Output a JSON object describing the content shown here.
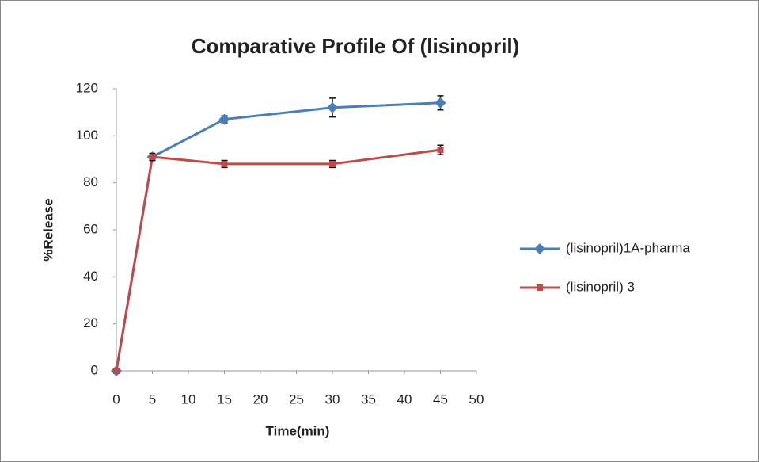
{
  "chart_data": {
    "type": "line",
    "title": "Comparative Profile Of (lisinopril)",
    "x_label": "Time(min)",
    "y_label": "%Release",
    "x": [
      0,
      5,
      15,
      30,
      45
    ],
    "series": [
      {
        "name": "(lisinopril)1A-pharma",
        "color": "#4a7ebb",
        "marker": "diamond",
        "values": [
          0,
          91,
          107,
          112,
          114
        ],
        "errors": [
          0,
          1.5,
          1.5,
          4,
          3
        ]
      },
      {
        "name": "(lisinopril) 3",
        "color": "#be4b48",
        "marker": "square",
        "values": [
          0,
          91,
          88,
          88,
          94
        ],
        "errors": [
          0,
          1.5,
          1.5,
          1.5,
          2
        ]
      }
    ],
    "xlim": [
      0,
      50
    ],
    "xticks": [
      0,
      5,
      10,
      15,
      20,
      25,
      30,
      35,
      40,
      45,
      50
    ],
    "ylim": [
      0,
      120
    ],
    "yticks": [
      0,
      20,
      40,
      60,
      80,
      100,
      120
    ],
    "grid": false,
    "legend": "right"
  }
}
